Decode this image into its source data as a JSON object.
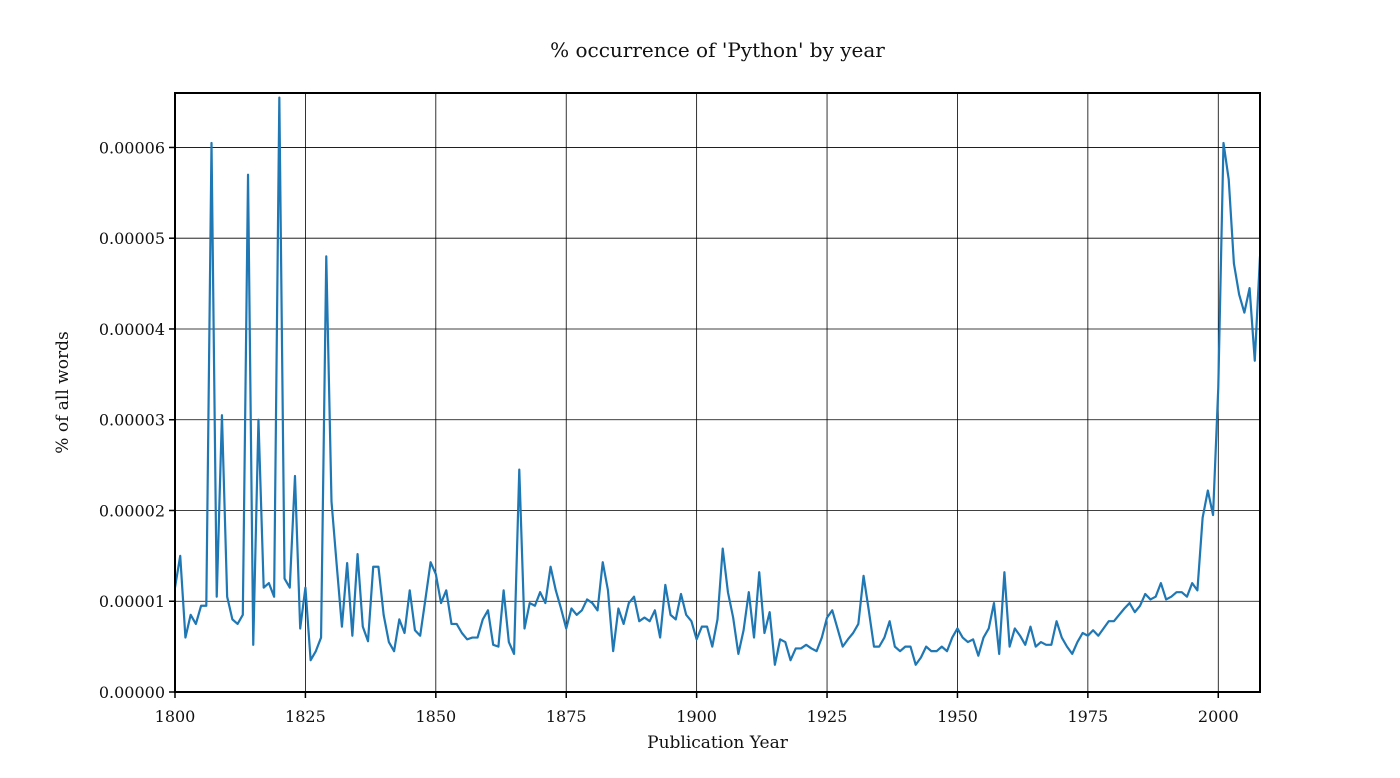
{
  "chart_data": {
    "type": "line",
    "title": "% occurrence of 'Python' by year",
    "xlabel": "Publication Year",
    "ylabel": "% of all words",
    "xlim": [
      1800,
      2008
    ],
    "ylim": [
      0,
      6.6e-05
    ],
    "grid": true,
    "x_ticks": [
      1800,
      1825,
      1850,
      1875,
      1900,
      1925,
      1950,
      1975,
      2000
    ],
    "x_tick_labels": [
      "1800",
      "1825",
      "1850",
      "1875",
      "1900",
      "1925",
      "1950",
      "1975",
      "2000"
    ],
    "y_ticks": [
      0,
      1e-05,
      2e-05,
      3e-05,
      4e-05,
      5e-05,
      6e-05
    ],
    "y_tick_labels": [
      "0.00000",
      "0.00001",
      "0.00002",
      "0.00003",
      "0.00004",
      "0.00005",
      "0.00006"
    ],
    "series": [
      {
        "color": "#1f77b4",
        "x": [
          1800,
          1801,
          1802,
          1803,
          1804,
          1805,
          1806,
          1807,
          1808,
          1809,
          1810,
          1811,
          1812,
          1813,
          1814,
          1815,
          1816,
          1817,
          1818,
          1819,
          1820,
          1821,
          1822,
          1823,
          1824,
          1825,
          1826,
          1827,
          1828,
          1829,
          1830,
          1831,
          1832,
          1833,
          1834,
          1835,
          1836,
          1837,
          1838,
          1839,
          1840,
          1841,
          1842,
          1843,
          1844,
          1845,
          1846,
          1847,
          1848,
          1849,
          1850,
          1851,
          1852,
          1853,
          1854,
          1855,
          1856,
          1857,
          1858,
          1859,
          1860,
          1861,
          1862,
          1863,
          1864,
          1865,
          1866,
          1867,
          1868,
          1869,
          1870,
          1871,
          1872,
          1873,
          1874,
          1875,
          1876,
          1877,
          1878,
          1879,
          1880,
          1881,
          1882,
          1883,
          1884,
          1885,
          1886,
          1887,
          1888,
          1889,
          1890,
          1891,
          1892,
          1893,
          1894,
          1895,
          1896,
          1897,
          1898,
          1899,
          1900,
          1901,
          1902,
          1903,
          1904,
          1905,
          1906,
          1907,
          1908,
          1909,
          1910,
          1911,
          1912,
          1913,
          1914,
          1915,
          1916,
          1917,
          1918,
          1919,
          1920,
          1921,
          1922,
          1923,
          1924,
          1925,
          1926,
          1927,
          1928,
          1929,
          1930,
          1931,
          1932,
          1933,
          1934,
          1935,
          1936,
          1937,
          1938,
          1939,
          1940,
          1941,
          1942,
          1943,
          1944,
          1945,
          1946,
          1947,
          1948,
          1949,
          1950,
          1951,
          1952,
          1953,
          1954,
          1955,
          1956,
          1957,
          1958,
          1959,
          1960,
          1961,
          1962,
          1963,
          1964,
          1965,
          1966,
          1967,
          1968,
          1969,
          1970,
          1971,
          1972,
          1973,
          1974,
          1975,
          1976,
          1977,
          1978,
          1979,
          1980,
          1981,
          1982,
          1983,
          1984,
          1985,
          1986,
          1987,
          1988,
          1989,
          1990,
          1991,
          1992,
          1993,
          1994,
          1995,
          1996,
          1997,
          1998,
          1999,
          2000,
          2001,
          2002,
          2003,
          2004,
          2005,
          2006,
          2007,
          2008
        ],
        "values": [
          1.15e-05,
          1.5e-05,
          6e-06,
          8.5e-06,
          7.5e-06,
          9.5e-06,
          9.5e-06,
          6.05e-05,
          1.05e-05,
          3.05e-05,
          1.05e-05,
          8e-06,
          7.5e-06,
          8.5e-06,
          5.7e-05,
          5.2e-06,
          3e-05,
          1.15e-05,
          1.2e-05,
          1.05e-05,
          6.55e-05,
          1.25e-05,
          1.15e-05,
          2.38e-05,
          7e-06,
          1.15e-05,
          3.5e-06,
          4.5e-06,
          6e-06,
          4.8e-05,
          2.1e-05,
          1.4e-05,
          7.2e-06,
          1.42e-05,
          6.2e-06,
          1.52e-05,
          7.2e-06,
          5.6e-06,
          1.38e-05,
          1.38e-05,
          8.5e-06,
          5.5e-06,
          4.5e-06,
          8e-06,
          6.5e-06,
          1.12e-05,
          6.8e-06,
          6.2e-06,
          1.02e-05,
          1.43e-05,
          1.3e-05,
          9.8e-06,
          1.12e-05,
          7.5e-06,
          7.5e-06,
          6.5e-06,
          5.8e-06,
          6e-06,
          6e-06,
          8e-06,
          9e-06,
          5.2e-06,
          5e-06,
          1.12e-05,
          5.5e-06,
          4.2e-06,
          2.45e-05,
          7e-06,
          9.8e-06,
          9.5e-06,
          1.1e-05,
          9.8e-06,
          1.38e-05,
          1.12e-05,
          9.2e-06,
          7e-06,
          9.2e-06,
          8.5e-06,
          9e-06,
          1.02e-05,
          9.8e-06,
          9e-06,
          1.43e-05,
          1.12e-05,
          4.5e-06,
          9.2e-06,
          7.5e-06,
          9.8e-06,
          1.05e-05,
          7.8e-06,
          8.2e-06,
          7.8e-06,
          9e-06,
          6e-06,
          1.18e-05,
          8.5e-06,
          8e-06,
          1.08e-05,
          8.5e-06,
          7.8e-06,
          5.8e-06,
          7.2e-06,
          7.2e-06,
          5e-06,
          8e-06,
          1.58e-05,
          1.1e-05,
          8.2e-06,
          4.2e-06,
          6.8e-06,
          1.1e-05,
          6e-06,
          1.32e-05,
          6.5e-06,
          8.8e-06,
          3e-06,
          5.8e-06,
          5.5e-06,
          3.5e-06,
          4.8e-06,
          4.8e-06,
          5.2e-06,
          4.8e-06,
          4.5e-06,
          6e-06,
          8.2e-06,
          9e-06,
          7e-06,
          5e-06,
          5.8e-06,
          6.5e-06,
          7.5e-06,
          1.28e-05,
          9e-06,
          5e-06,
          5e-06,
          6e-06,
          7.8e-06,
          5e-06,
          4.5e-06,
          5e-06,
          5e-06,
          3e-06,
          3.8e-06,
          5e-06,
          4.5e-06,
          4.5e-06,
          5e-06,
          4.5e-06,
          6e-06,
          7e-06,
          6e-06,
          5.5e-06,
          5.8e-06,
          4e-06,
          6e-06,
          7e-06,
          9.8e-06,
          4.2e-06,
          1.32e-05,
          5e-06,
          7e-06,
          6.2e-06,
          5.2e-06,
          7.2e-06,
          5e-06,
          5.5e-06,
          5.2e-06,
          5.2e-06,
          7.8e-06,
          6e-06,
          5e-06,
          4.2e-06,
          5.5e-06,
          6.5e-06,
          6.2e-06,
          6.8e-06,
          6.2e-06,
          7e-06,
          7.8e-06,
          7.8e-06,
          8.5e-06,
          9.2e-06,
          9.8e-06,
          8.8e-06,
          9.5e-06,
          1.08e-05,
          1.02e-05,
          1.05e-05,
          1.2e-05,
          1.02e-05,
          1.05e-05,
          1.1e-05,
          1.1e-05,
          1.05e-05,
          1.2e-05,
          1.12e-05,
          1.92e-05,
          2.22e-05,
          1.95e-05,
          3.35e-05,
          6.05e-05,
          5.65e-05,
          4.72e-05,
          4.38e-05,
          4.18e-05,
          4.45e-05,
          3.65e-05,
          4.8e-05
        ]
      }
    ]
  }
}
